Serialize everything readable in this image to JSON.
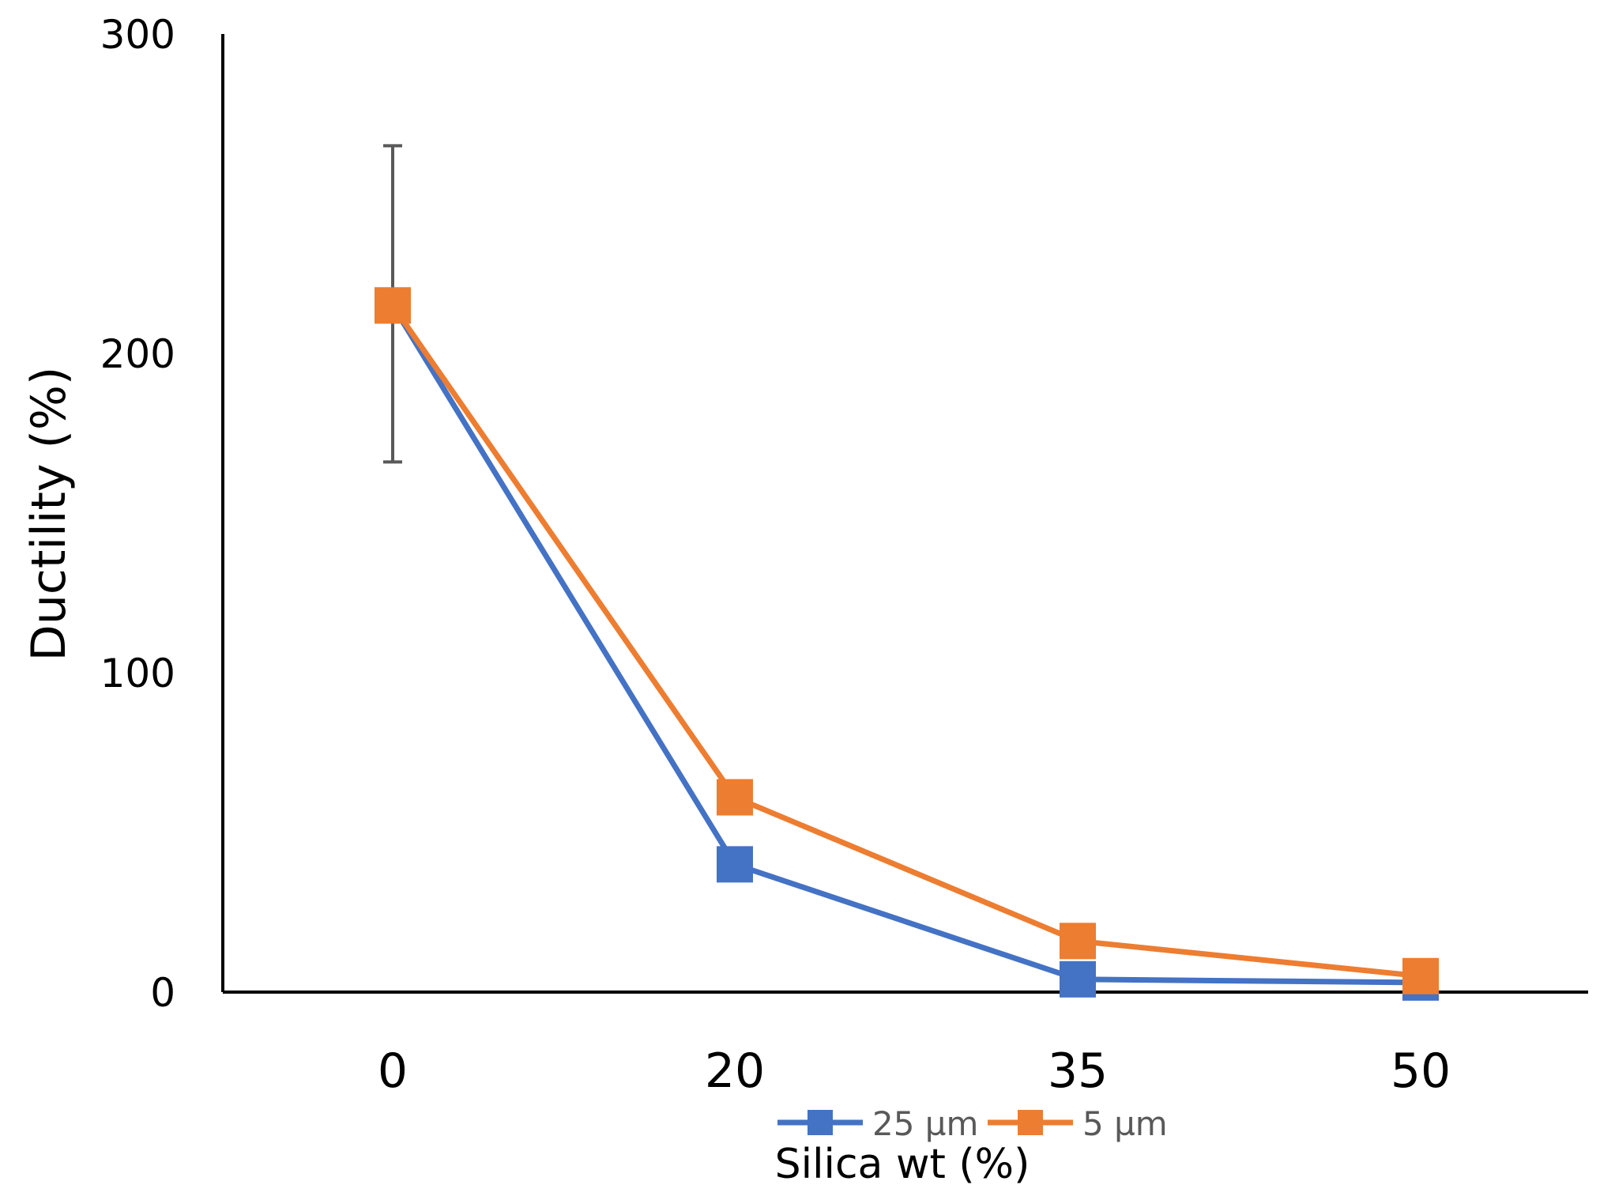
{
  "chart_data": {
    "type": "line",
    "title": "",
    "xlabel": "Silica wt (%)",
    "ylabel": "Ductility (%)",
    "categories": [
      "0",
      "20",
      "35",
      "50"
    ],
    "ylim": [
      0,
      300
    ],
    "yticks": [
      "0",
      "100",
      "200",
      "300"
    ],
    "grid": false,
    "legend_position": "bottom",
    "series": [
      {
        "name": "25 µm",
        "color": "#4472C4",
        "marker": "square",
        "values": [
          215,
          40,
          4,
          3
        ]
      },
      {
        "name": "5 µm",
        "color": "#ED7D31",
        "marker": "square",
        "values": [
          215,
          61,
          16,
          5
        ]
      }
    ],
    "error_bars": [
      {
        "category": "0",
        "low": 166,
        "high": 265,
        "color": "#595959"
      }
    ]
  }
}
